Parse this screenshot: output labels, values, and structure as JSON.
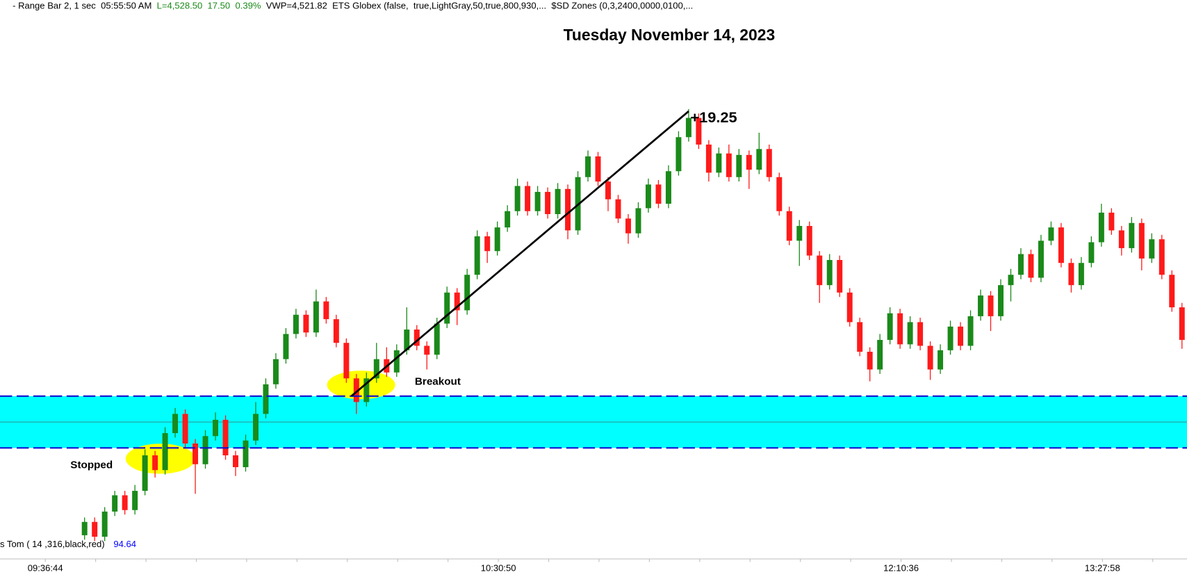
{
  "chart_data": {
    "type": "candlestick",
    "header": [
      "- Range Bar 2, 1 sec  05:55:50 AM  ",
      "L=4,528.50  17.50  0.39%",
      "  VWP=4,521.82  ETS Globex (false,  true,LightGray,50,true,800,930,...  $SD Zones (0,3,2400,0000,0100,..."
    ],
    "header_colors": [
      "#000000",
      "#1a8a1a",
      "#000000"
    ],
    "title": "Tuesday November 14, 2023",
    "annotations": {
      "gain": "+19.25",
      "breakout": "Breakout",
      "stopped": "Stopped"
    },
    "indicator": {
      "label": "s Tom ( 14 ,316,black,red)",
      "value": 94.64
    },
    "colors": {
      "up": "#1a8a1a",
      "down": "#ff1a1a",
      "zone": "#00ffff",
      "zone_edge": "#1010d0",
      "zone_mid": "#2a9a9a",
      "trendline": "#000000"
    },
    "zone": {
      "top": 4500,
      "mid": 4498.25,
      "bottom": 4496.5
    },
    "trendline": {
      "from": {
        "x": 26.5,
        "y": 4500
      },
      "to": {
        "x": 60,
        "y": 4519.25
      }
    },
    "xlim": [
      -8.4,
      109.5
    ],
    "ylim": [
      4489,
      4525.75
    ],
    "xticks": [
      {
        "value": -3.9,
        "label": "09:36:44"
      },
      {
        "value": 41.1,
        "label": "10:30:50"
      },
      {
        "value": 81.1,
        "label": "12:10:36"
      },
      {
        "value": 101.1,
        "label": "13:27:58"
      }
    ],
    "minor_xticks": [
      1.1,
      6.1,
      11.1,
      16.1,
      21.1,
      26.1,
      31.1,
      36.1,
      46.1,
      51.1,
      56.1,
      61.1,
      66.1,
      71.1,
      76.1,
      86.1,
      91.1,
      96.1,
      106.1
    ],
    "candles": [
      [
        4490.6,
        4491.8,
        4490.3,
        4491.5
      ],
      [
        4491.5,
        4491.8,
        4490.2,
        4490.5
      ],
      [
        4490.5,
        4492.5,
        4490.2,
        4492.2
      ],
      [
        4492.2,
        4493.6,
        4491.9,
        4493.3
      ],
      [
        4493.3,
        4493.6,
        4492.0,
        4492.3
      ],
      [
        4492.3,
        4494.0,
        4492.0,
        4493.6
      ],
      [
        4493.6,
        4496.4,
        4493.3,
        4496.0
      ],
      [
        4496.0,
        4496.3,
        4494.5,
        4495.0
      ],
      [
        4495.0,
        4497.9,
        4494.7,
        4497.5
      ],
      [
        4497.5,
        4499.2,
        4497.2,
        4498.8
      ],
      [
        4498.8,
        4499.1,
        4496.5,
        4496.8
      ],
      [
        4496.8,
        4497.1,
        4493.4,
        4495.4
      ],
      [
        4495.4,
        4497.7,
        4495.1,
        4497.3
      ],
      [
        4497.3,
        4498.9,
        4497.0,
        4498.4
      ],
      [
        4498.4,
        4498.7,
        4495.7,
        4496.0
      ],
      [
        4496.0,
        4496.3,
        4494.6,
        4495.2
      ],
      [
        4495.2,
        4497.4,
        4494.9,
        4497.0
      ],
      [
        4497.0,
        4499.6,
        4496.7,
        4498.8
      ],
      [
        4498.8,
        4501.2,
        4498.5,
        4500.8
      ],
      [
        4500.8,
        4502.9,
        4500.5,
        4502.5
      ],
      [
        4502.5,
        4504.6,
        4502.2,
        4504.2
      ],
      [
        4504.2,
        4505.9,
        4503.9,
        4505.5
      ],
      [
        4505.5,
        4505.8,
        4504.0,
        4504.3
      ],
      [
        4504.3,
        4507.2,
        4504.0,
        4506.4
      ],
      [
        4506.4,
        4506.7,
        4504.9,
        4505.2
      ],
      [
        4505.2,
        4505.5,
        4503.3,
        4503.6
      ],
      [
        4503.6,
        4503.9,
        4500.9,
        4501.2
      ],
      [
        4501.2,
        4501.5,
        4498.8,
        4499.6
      ],
      [
        4499.6,
        4501.6,
        4499.3,
        4501.2
      ],
      [
        4501.2,
        4503.6,
        4500.9,
        4502.5
      ],
      [
        4502.5,
        4503.3,
        4501.3,
        4501.6
      ],
      [
        4501.6,
        4503.5,
        4501.3,
        4503.1
      ],
      [
        4503.1,
        4506.0,
        4502.8,
        4504.5
      ],
      [
        4504.5,
        4504.8,
        4503.1,
        4503.4
      ],
      [
        4503.4,
        4503.7,
        4501.8,
        4502.8
      ],
      [
        4502.8,
        4505.3,
        4502.5,
        4504.9
      ],
      [
        4504.9,
        4507.4,
        4504.6,
        4507.0
      ],
      [
        4507.0,
        4507.3,
        4504.8,
        4505.8
      ],
      [
        4505.8,
        4508.6,
        4505.5,
        4508.2
      ],
      [
        4508.2,
        4511.2,
        4507.9,
        4510.8
      ],
      [
        4510.8,
        4511.1,
        4509.0,
        4509.8
      ],
      [
        4509.8,
        4511.8,
        4509.5,
        4511.4
      ],
      [
        4511.4,
        4512.9,
        4511.1,
        4512.5
      ],
      [
        4512.5,
        4514.7,
        4512.2,
        4514.2
      ],
      [
        4514.2,
        4514.5,
        4512.2,
        4512.5
      ],
      [
        4512.5,
        4514.2,
        4512.2,
        4513.8
      ],
      [
        4513.8,
        4514.1,
        4512.0,
        4512.3
      ],
      [
        4512.3,
        4514.4,
        4512.0,
        4514.0
      ],
      [
        4514.0,
        4514.3,
        4510.6,
        4511.2
      ],
      [
        4511.2,
        4515.2,
        4510.9,
        4514.8
      ],
      [
        4514.8,
        4516.6,
        4514.5,
        4516.2
      ],
      [
        4516.2,
        4516.5,
        4514.2,
        4514.5
      ],
      [
        4514.5,
        4514.8,
        4512.5,
        4513.3
      ],
      [
        4513.3,
        4513.6,
        4511.7,
        4512.0
      ],
      [
        4512.0,
        4512.3,
        4510.3,
        4511.0
      ],
      [
        4511.0,
        4513.1,
        4510.7,
        4512.7
      ],
      [
        4512.7,
        4514.7,
        4512.4,
        4514.3
      ],
      [
        4514.3,
        4514.6,
        4512.7,
        4513.0
      ],
      [
        4513.0,
        4515.6,
        4512.7,
        4515.2
      ],
      [
        4515.2,
        4517.9,
        4514.9,
        4517.5
      ],
      [
        4517.5,
        4519.4,
        4517.2,
        4518.8
      ],
      [
        4518.8,
        4519.1,
        4516.7,
        4517.0
      ],
      [
        4517.0,
        4517.3,
        4514.5,
        4515.1
      ],
      [
        4515.1,
        4516.8,
        4514.8,
        4516.4
      ],
      [
        4516.4,
        4517.0,
        4514.5,
        4514.8
      ],
      [
        4514.8,
        4516.7,
        4514.5,
        4516.3
      ],
      [
        4516.3,
        4516.6,
        4514.0,
        4515.3
      ],
      [
        4515.3,
        4517.8,
        4515.0,
        4516.7
      ],
      [
        4516.7,
        4517.0,
        4514.5,
        4514.8
      ],
      [
        4514.8,
        4515.1,
        4512.2,
        4512.5
      ],
      [
        4512.5,
        4512.8,
        4510.2,
        4510.5
      ],
      [
        4510.5,
        4511.9,
        4508.8,
        4511.5
      ],
      [
        4511.5,
        4511.8,
        4509.2,
        4509.5
      ],
      [
        4509.5,
        4509.8,
        4506.3,
        4507.5
      ],
      [
        4507.5,
        4509.6,
        4507.2,
        4509.2
      ],
      [
        4509.2,
        4509.5,
        4506.7,
        4507.0
      ],
      [
        4507.0,
        4507.3,
        4504.7,
        4505.0
      ],
      [
        4505.0,
        4505.3,
        4502.7,
        4503.0
      ],
      [
        4503.0,
        4503.3,
        4501.0,
        4501.8
      ],
      [
        4501.8,
        4504.2,
        4501.5,
        4503.8
      ],
      [
        4503.8,
        4506.0,
        4503.5,
        4505.6
      ],
      [
        4505.6,
        4505.9,
        4503.2,
        4503.5
      ],
      [
        4503.5,
        4505.4,
        4503.2,
        4505.0
      ],
      [
        4505.0,
        4505.3,
        4503.1,
        4503.4
      ],
      [
        4503.4,
        4503.7,
        4501.1,
        4501.8
      ],
      [
        4501.8,
        4503.5,
        4501.5,
        4503.1
      ],
      [
        4503.1,
        4505.1,
        4502.8,
        4504.7
      ],
      [
        4504.7,
        4505.0,
        4503.1,
        4503.4
      ],
      [
        4503.4,
        4505.8,
        4503.1,
        4505.4
      ],
      [
        4505.4,
        4507.2,
        4505.1,
        4506.8
      ],
      [
        4506.8,
        4507.1,
        4504.4,
        4505.4
      ],
      [
        4505.4,
        4507.9,
        4505.1,
        4507.5
      ],
      [
        4507.5,
        4508.6,
        4506.4,
        4508.2
      ],
      [
        4508.2,
        4510.0,
        4507.9,
        4509.6
      ],
      [
        4509.6,
        4509.9,
        4507.7,
        4508.0
      ],
      [
        4508.0,
        4510.9,
        4507.7,
        4510.5
      ],
      [
        4510.5,
        4511.8,
        4510.2,
        4511.4
      ],
      [
        4511.4,
        4511.7,
        4508.7,
        4509.0
      ],
      [
        4509.0,
        4509.3,
        4507.0,
        4507.5
      ],
      [
        4507.5,
        4509.4,
        4507.2,
        4509.0
      ],
      [
        4509.0,
        4510.8,
        4508.7,
        4510.4
      ],
      [
        4510.4,
        4513.0,
        4510.1,
        4512.4
      ],
      [
        4512.4,
        4512.7,
        4510.9,
        4511.2
      ],
      [
        4511.2,
        4511.5,
        4509.5,
        4510.0
      ],
      [
        4510.0,
        4512.1,
        4509.7,
        4511.7
      ],
      [
        4511.7,
        4512.0,
        4508.5,
        4509.3
      ],
      [
        4509.3,
        4511.0,
        4509.0,
        4510.6
      ],
      [
        4510.6,
        4510.9,
        4507.9,
        4508.2
      ],
      [
        4508.2,
        4508.5,
        4505.7,
        4506.0
      ],
      [
        4506.0,
        4506.3,
        4503.2,
        4503.8
      ]
    ]
  }
}
